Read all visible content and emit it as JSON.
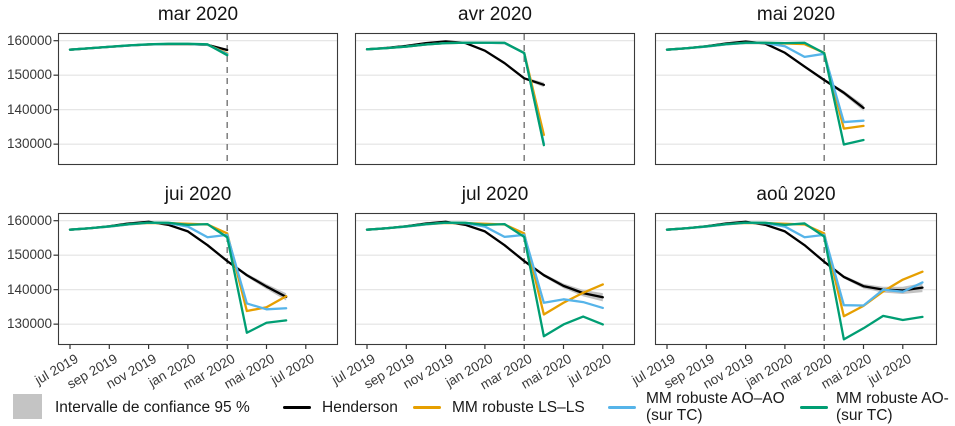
{
  "palette": {
    "henderson": "#000000",
    "mm_ls_ls": "#E69F00",
    "mm_ao_ao": "#56B4E9",
    "mm_ao_tc": "#009E73",
    "confidence_band": "#C2C2C2",
    "vline": "#7D7D7D",
    "gridline": "#E3E3E3",
    "panel_border": "#3A3A3A",
    "axis_text": "#383838",
    "title_text": "#141414"
  },
  "legend": {
    "items": [
      {
        "type": "box",
        "color": "#C4C4C4",
        "label": "Intervalle de confiance 95 %"
      },
      {
        "type": "line",
        "color": "#000000",
        "label": "Henderson"
      },
      {
        "type": "line",
        "color": "#E69F00",
        "label": "MM robuste LS–LS"
      },
      {
        "type": "line",
        "color": "#56B4E9",
        "label": "MM robuste AO–AO",
        "label_line2": "(sur TC)"
      },
      {
        "type": "line",
        "color": "#009E73",
        "label": "MM robuste AO-",
        "label_line2": "(sur TC)"
      }
    ]
  },
  "axis": {
    "y_tick_labels": [
      "160000",
      "150000",
      "140000",
      "130000"
    ],
    "y_tick_values": [
      160000,
      150000,
      140000,
      130000
    ],
    "x_tick_labels": [
      "jul 2019",
      "sep 2019",
      "nov 2019",
      "jan 2020",
      "mar 2020",
      "mai 2020",
      "jul 2020"
    ],
    "x_tick_month_indices": [
      0,
      2,
      4,
      6,
      8,
      10,
      12
    ]
  },
  "chart_data": {
    "type": "line",
    "x_unit": "month",
    "start_month": "jul 2019",
    "y_domain": [
      124000,
      162200
    ],
    "grid": "horizontal-only",
    "vline_month_index": 8,
    "vline_label": "mar 2020",
    "series_names": [
      "Henderson",
      "MM robuste LS–LS",
      "MM robuste AO–AO (sur TC)",
      "MM robuste AO- (sur TC)"
    ],
    "facets": [
      {
        "title": "mar 2020",
        "henderson": [
          157400,
          157800,
          158200,
          158600,
          158900,
          159000,
          159000,
          158800,
          157300
        ],
        "mm_ls_ls": [
          157400,
          157800,
          158200,
          158600,
          158900,
          159050,
          159050,
          158850,
          156300
        ],
        "mm_ao_ao": [
          157400,
          157800,
          158200,
          158600,
          158900,
          159050,
          159050,
          158850,
          156100
        ],
        "mm_ao_tc": [
          157400,
          157800,
          158250,
          158650,
          158950,
          159100,
          159100,
          158950,
          155800
        ],
        "band_halfwidth": [
          0,
          0,
          0,
          0,
          0,
          0,
          0,
          0,
          400
        ]
      },
      {
        "title": "avr 2020",
        "henderson": [
          157500,
          157900,
          158500,
          159300,
          159800,
          159350,
          157100,
          153500,
          149100,
          147200
        ],
        "mm_ls_ls": [
          157500,
          157850,
          158300,
          158900,
          159300,
          159400,
          159400,
          159300,
          156500,
          132700
        ],
        "mm_ao_ao": [
          157500,
          157850,
          158300,
          158900,
          159300,
          159400,
          159400,
          159300,
          156450,
          130100
        ],
        "mm_ao_tc": [
          157500,
          157850,
          158300,
          158900,
          159300,
          159400,
          159400,
          159400,
          156400,
          129700
        ],
        "band_halfwidth": [
          0,
          0,
          0,
          0,
          0,
          0,
          0,
          0,
          300,
          700
        ]
      },
      {
        "title": "mai 2020",
        "henderson": [
          157400,
          157800,
          158400,
          159200,
          159750,
          159200,
          156500,
          152500,
          148600,
          144900,
          140500
        ],
        "mm_ls_ls": [
          157400,
          157800,
          158300,
          158950,
          159350,
          159350,
          159200,
          159000,
          156500,
          134500,
          135300
        ],
        "mm_ao_ao": [
          157400,
          157800,
          158300,
          158950,
          159350,
          159350,
          158400,
          155300,
          156200,
          136400,
          136800
        ],
        "mm_ao_tc": [
          157400,
          157800,
          158350,
          159000,
          159400,
          159400,
          159300,
          159400,
          156400,
          129900,
          131200
        ],
        "band_halfwidth": [
          0,
          0,
          0,
          0,
          0,
          0,
          0,
          0,
          300,
          600,
          900
        ]
      },
      {
        "title": "jui 2020",
        "henderson": [
          157400,
          157800,
          158400,
          159200,
          159700,
          158800,
          156900,
          152900,
          148300,
          144200,
          140900,
          137900
        ],
        "mm_ls_ls": [
          157400,
          157800,
          158300,
          158950,
          159350,
          159300,
          159100,
          158900,
          156300,
          133800,
          134900,
          138100
        ],
        "mm_ao_ao": [
          157400,
          157800,
          158300,
          158950,
          159400,
          159300,
          158300,
          155200,
          155900,
          136000,
          134300,
          134600
        ],
        "mm_ao_tc": [
          157400,
          157800,
          158350,
          159000,
          159450,
          159400,
          158800,
          159000,
          155200,
          127500,
          130400,
          131100
        ],
        "band_halfwidth": [
          0,
          0,
          0,
          0,
          0,
          0,
          0,
          0,
          250,
          500,
          750,
          1050
        ]
      },
      {
        "title": "jul 2020",
        "henderson": [
          157400,
          157800,
          158400,
          159200,
          159700,
          158800,
          156900,
          152900,
          148300,
          144200,
          141100,
          139000,
          137800
        ],
        "mm_ls_ls": [
          157400,
          157800,
          158300,
          158950,
          159350,
          159300,
          159100,
          158900,
          156300,
          132800,
          136200,
          139100,
          141500
        ],
        "mm_ao_ao": [
          157400,
          157800,
          158300,
          158950,
          159400,
          159300,
          158300,
          155300,
          155900,
          136200,
          137200,
          136400,
          134700
        ],
        "mm_ao_tc": [
          157400,
          157800,
          158350,
          159000,
          159450,
          159400,
          158800,
          159000,
          155300,
          126500,
          129900,
          132200,
          129900
        ],
        "band_halfwidth": [
          0,
          0,
          0,
          0,
          0,
          0,
          0,
          0,
          250,
          450,
          700,
          950,
          1200
        ]
      },
      {
        "title": "aoû 2020",
        "henderson": [
          157400,
          157800,
          158400,
          159200,
          159700,
          158800,
          156900,
          152900,
          148100,
          143700,
          141000,
          140000,
          139800,
          140600
        ],
        "mm_ls_ls": [
          157400,
          157800,
          158300,
          158950,
          159350,
          159300,
          159100,
          158900,
          156300,
          132300,
          135300,
          139500,
          142900,
          145200
        ],
        "mm_ao_ao": [
          157400,
          157800,
          158300,
          158950,
          159400,
          159300,
          158300,
          155200,
          155900,
          135500,
          135400,
          140000,
          139400,
          142100
        ],
        "mm_ao_tc": [
          157400,
          157800,
          158350,
          159000,
          159450,
          159400,
          158800,
          159200,
          155400,
          125600,
          128800,
          132400,
          131200,
          132100
        ],
        "band_halfwidth": [
          0,
          0,
          0,
          0,
          0,
          0,
          0,
          0,
          250,
          450,
          650,
          850,
          1050,
          1300
        ]
      }
    ]
  }
}
